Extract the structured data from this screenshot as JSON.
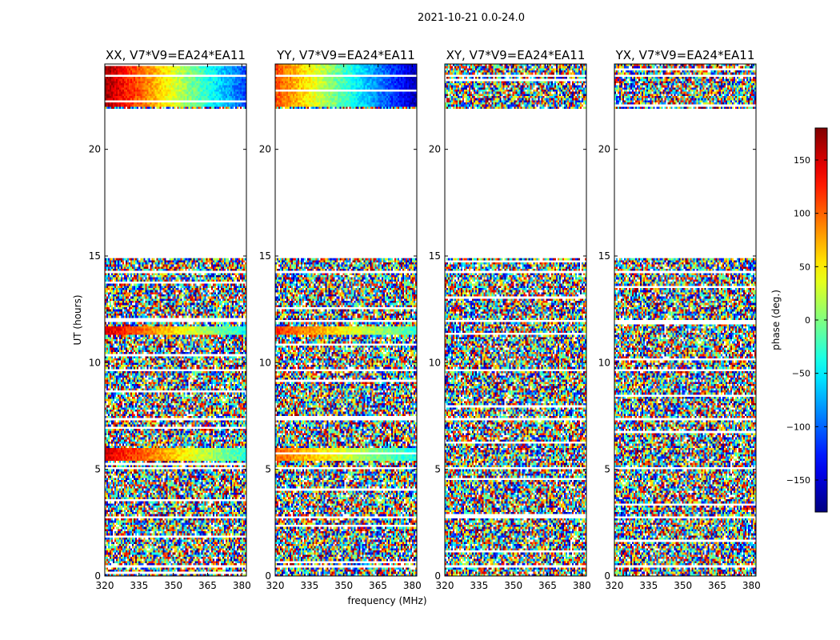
{
  "figure": {
    "suptitle": "2021-10-21 0.0-24.0",
    "shared_xlabel": "frequency (MHz)",
    "shared_ylabel": "UT (hours)"
  },
  "chart_data": [
    {
      "type": "heatmap",
      "title": "XX, V7*V9=EA24*EA11",
      "xlabel": "frequency (MHz)",
      "ylabel": "UT (hours)",
      "xlim": [
        320,
        382
      ],
      "ylim": [
        0,
        24
      ],
      "xticks": [
        320,
        335,
        350,
        365,
        380
      ],
      "yticks": [
        0,
        5,
        10,
        15,
        20
      ],
      "value_field": "phase (deg.)",
      "empty_ut_range": [
        14.9,
        21.9
      ],
      "coherent_phase_bands": [
        {
          "ut": [
            11.35,
            11.7
          ],
          "phase_low_freq": 150,
          "phase_high_freq": -40
        },
        {
          "ut": [
            5.4,
            6.0
          ],
          "phase_low_freq": 150,
          "phase_high_freq": -30
        },
        {
          "ut": [
            22.0,
            24.0
          ],
          "phase_low_freq": 170,
          "phase_high_freq": -110
        }
      ]
    },
    {
      "type": "heatmap",
      "title": "YY, V7*V9=EA24*EA11",
      "xlabel": "frequency (MHz)",
      "ylabel": "UT (hours)",
      "xlim": [
        320,
        382
      ],
      "ylim": [
        0,
        24
      ],
      "xticks": [
        320,
        335,
        350,
        365,
        380
      ],
      "yticks": [
        0,
        5,
        10,
        15,
        20
      ],
      "value_field": "phase (deg.)",
      "empty_ut_range": [
        14.9,
        21.9
      ],
      "coherent_phase_bands": [
        {
          "ut": [
            11.35,
            11.7
          ],
          "phase_low_freq": 120,
          "phase_high_freq": -30
        },
        {
          "ut": [
            5.4,
            6.0
          ],
          "phase_low_freq": 100,
          "phase_high_freq": -40
        },
        {
          "ut": [
            22.0,
            24.0
          ],
          "phase_low_freq": 110,
          "phase_high_freq": -160
        }
      ]
    },
    {
      "type": "heatmap",
      "title": "XY, V7*V9=EA24*EA11",
      "xlabel": "frequency (MHz)",
      "ylabel": "UT (hours)",
      "xlim": [
        320,
        382
      ],
      "ylim": [
        0,
        24
      ],
      "xticks": [
        320,
        335,
        350,
        365,
        380
      ],
      "yticks": [
        0,
        5,
        10,
        15,
        20
      ],
      "value_field": "phase (deg.)",
      "empty_ut_range": [
        14.9,
        21.9
      ],
      "coherent_phase_bands": []
    },
    {
      "type": "heatmap",
      "title": "YX, V7*V9=EA24*EA11",
      "xlabel": "frequency (MHz)",
      "ylabel": "UT (hours)",
      "xlim": [
        320,
        382
      ],
      "ylim": [
        0,
        24
      ],
      "xticks": [
        320,
        335,
        350,
        365,
        380
      ],
      "yticks": [
        0,
        5,
        10,
        15,
        20
      ],
      "value_field": "phase (deg.)",
      "empty_ut_range": [
        14.9,
        21.9
      ],
      "coherent_phase_bands": []
    }
  ],
  "colorbar": {
    "label": "phase (deg.)",
    "range": [
      -180,
      180
    ],
    "colormap": "jet",
    "ticks": [
      -150,
      -100,
      -50,
      0,
      50,
      100,
      150
    ],
    "tick_labels": [
      "−150",
      "−100",
      "−50",
      "0",
      "50",
      "100",
      "150"
    ]
  },
  "colors": {
    "axes": "#000000",
    "background": "#ffffff"
  }
}
